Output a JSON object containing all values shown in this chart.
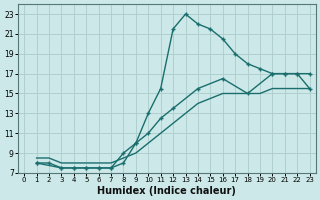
{
  "xlabel": "Humidex (Indice chaleur)",
  "bg_color": "#cce8e8",
  "grid_color": "#b0d0d0",
  "line_color": "#1a6e6e",
  "xlim": [
    -0.5,
    23.5
  ],
  "ylim": [
    7,
    24
  ],
  "xticks": [
    0,
    1,
    2,
    3,
    4,
    5,
    6,
    7,
    8,
    9,
    10,
    11,
    12,
    13,
    14,
    15,
    16,
    17,
    18,
    19,
    20,
    21,
    22,
    23
  ],
  "yticks": [
    7,
    9,
    11,
    13,
    15,
    17,
    19,
    21,
    23
  ],
  "line1_x": [
    1,
    2,
    3,
    4,
    5,
    6,
    7,
    8,
    9,
    10,
    11,
    12,
    13,
    14,
    15,
    16,
    17,
    18,
    19,
    20,
    21,
    22,
    23
  ],
  "line1_y": [
    8,
    8,
    7.5,
    7.5,
    7.5,
    7.5,
    7.5,
    8,
    10,
    13,
    15.5,
    21.5,
    23,
    22,
    21.5,
    20.5,
    19,
    18,
    17.5,
    17,
    17,
    17,
    17
  ],
  "line2_x": [
    1,
    3,
    4,
    5,
    6,
    7,
    8,
    9,
    10,
    11,
    12,
    14,
    16,
    18,
    20,
    21,
    22,
    23
  ],
  "line2_y": [
    8,
    7.5,
    7.5,
    7.5,
    7.5,
    7.5,
    9,
    10,
    11,
    12.5,
    13.5,
    15.5,
    16.5,
    15,
    17,
    17,
    17,
    15.5
  ],
  "line3_x": [
    1,
    2,
    3,
    4,
    5,
    6,
    7,
    8,
    9,
    10,
    11,
    12,
    13,
    14,
    15,
    16,
    17,
    18,
    19,
    20,
    21,
    22,
    23
  ],
  "line3_y": [
    8.5,
    8.5,
    8,
    8,
    8,
    8,
    8,
    8.5,
    9,
    10,
    11,
    12,
    13,
    14,
    14.5,
    15,
    15,
    15,
    15,
    15.5,
    15.5,
    15.5,
    15.5
  ]
}
